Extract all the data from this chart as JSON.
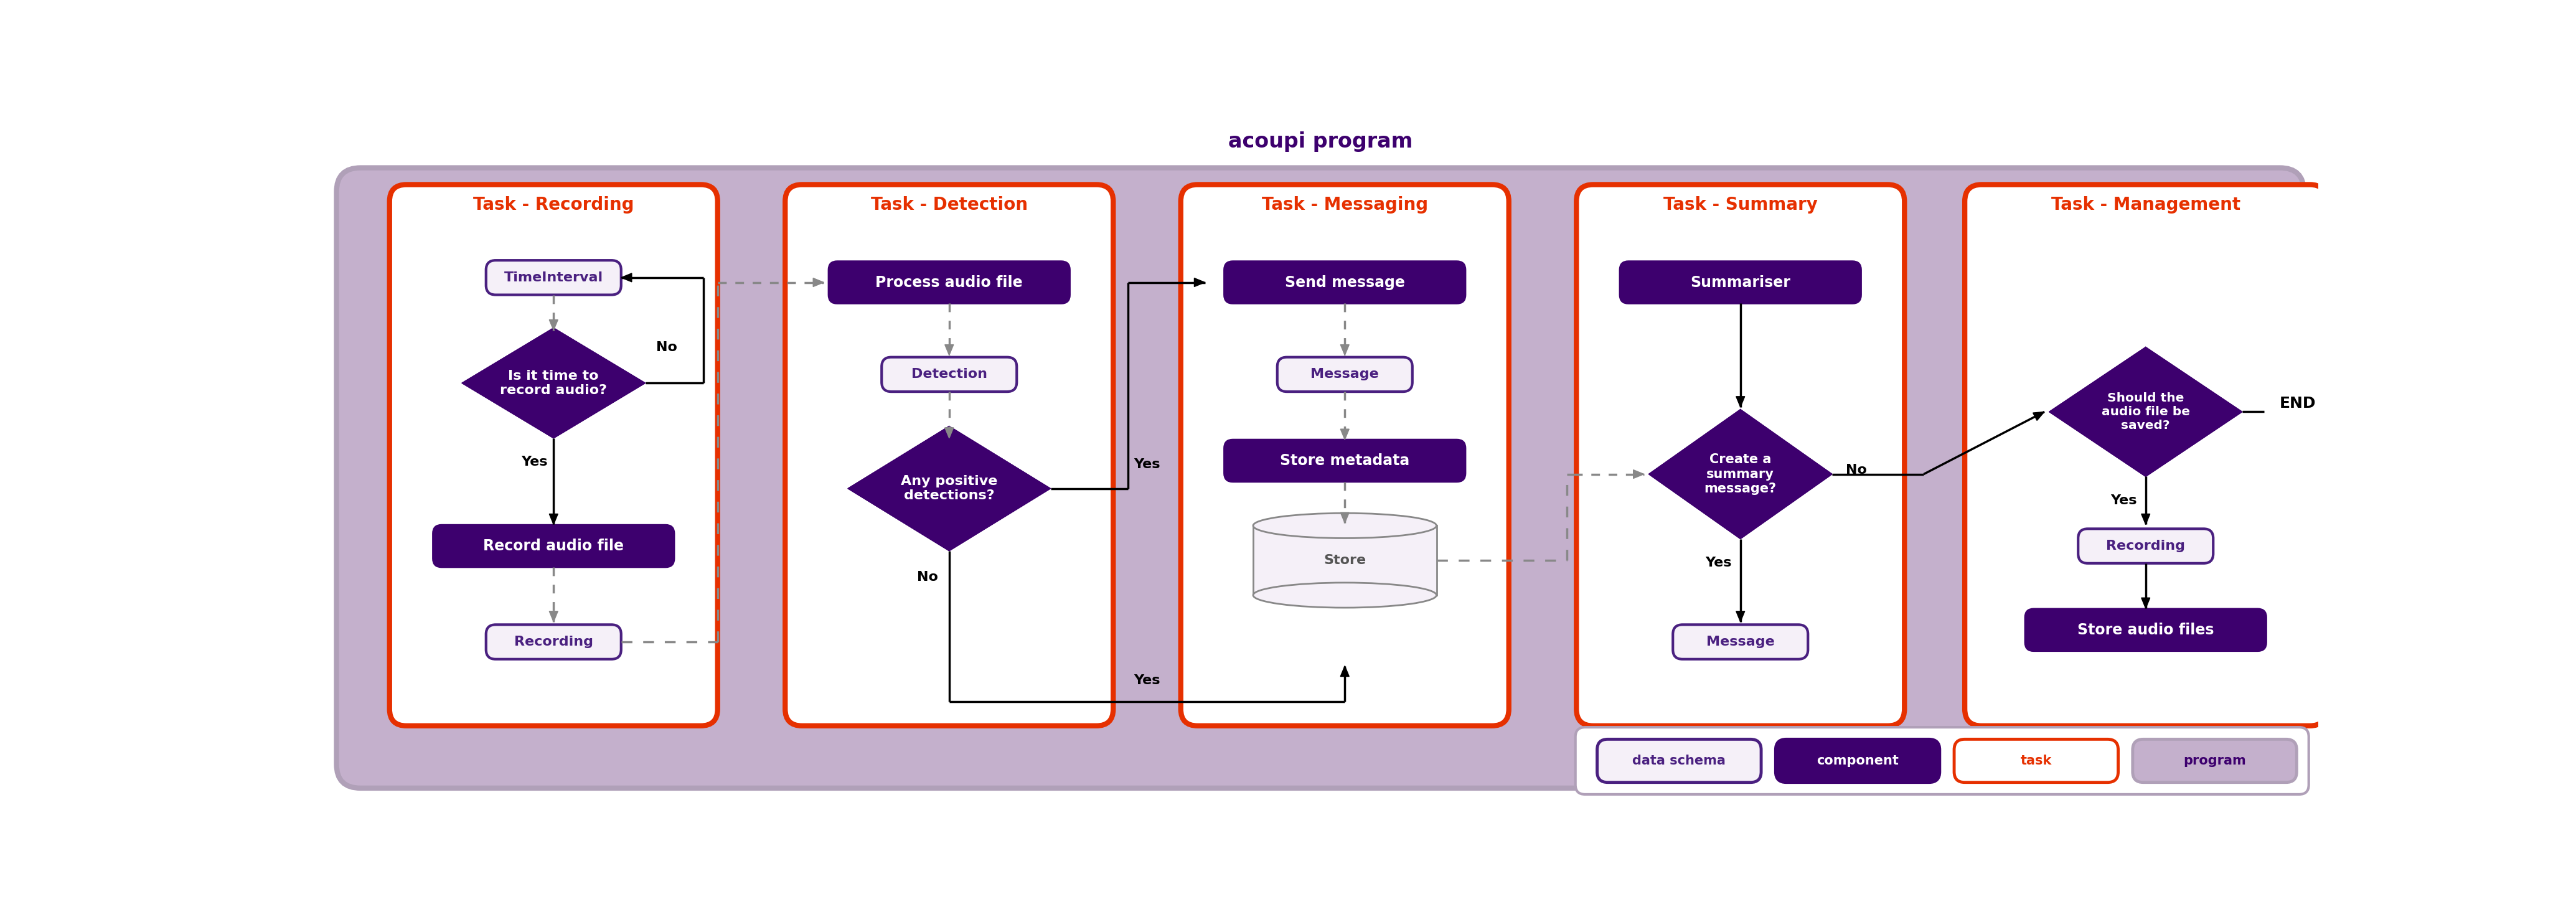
{
  "title": "acoupi program",
  "bg_color": "#c4b0cc",
  "bg_border": "#b0a0b8",
  "task_bg": "white",
  "task_border": "#e63000",
  "task_title_color": "#e63000",
  "component_fill": "#3d006e",
  "component_text": "white",
  "schema_fill": "#f5f0f8",
  "schema_border": "#4a2080",
  "schema_text": "#4a2080",
  "arrow_color": "black",
  "dashed_color": "#888888",
  "title_color": "#3d006e",
  "end_color": "black",
  "legend_items": [
    {
      "label": "data schema",
      "fill": "#f5f0f8",
      "border": "#4a2080",
      "text_color": "#4a2080"
    },
    {
      "label": "component",
      "fill": "#3d006e",
      "border": "#3d006e",
      "text_color": "white"
    },
    {
      "label": "task",
      "fill": "white",
      "border": "#e63000",
      "text_color": "#e63000"
    },
    {
      "label": "program",
      "fill": "#c4b0cc",
      "border": "#b0a0b8",
      "text_color": "#3d006e"
    }
  ],
  "task_widths": [
    6.8,
    6.8,
    6.8,
    6.8,
    7.5
  ],
  "task_centers": [
    4.8,
    13.0,
    21.2,
    29.4,
    37.8
  ],
  "task_names": [
    "Task - Recording",
    "Task - Detection",
    "Task - Messaging",
    "Task - Summary",
    "Task - Management"
  ],
  "figw": 41.38,
  "figh": 14.44
}
